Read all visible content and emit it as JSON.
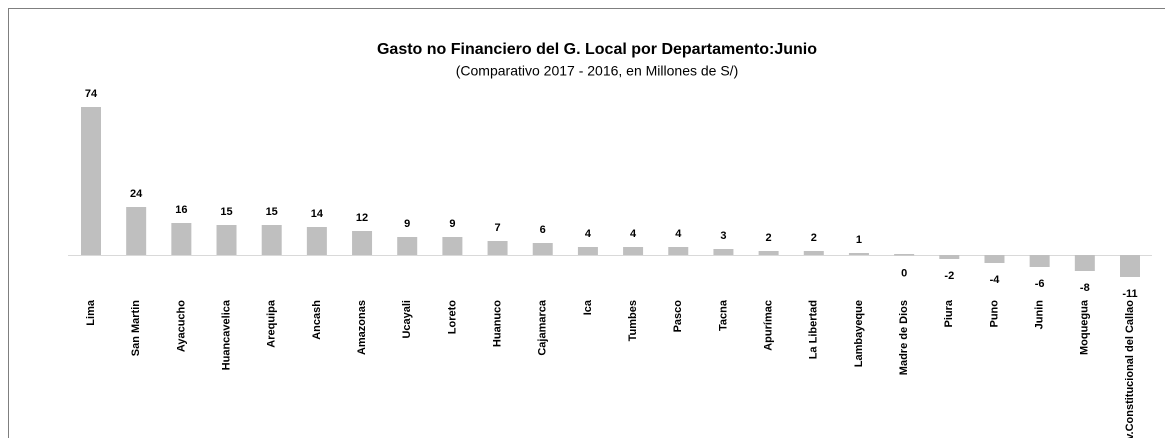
{
  "chart_data": {
    "type": "bar",
    "title": "Gasto no Financiero del G. Local por Departamento:Junio",
    "subtitle": "(Comparativo 2017 - 2016,  en Millones de S/)",
    "categories": [
      "Lima",
      "San Martin",
      "Ayacucho",
      "Huancavelica",
      "Arequipa",
      "Ancash",
      "Amazonas",
      "Ucayali",
      "Loreto",
      "Huanuco",
      "Cajamarca",
      "Ica",
      "Tumbes",
      "Pasco",
      "Tacna",
      "Apurímac",
      "La Libertad",
      "Lambayeque",
      "Madre de Dios",
      "Piura",
      "Puno",
      "Junin",
      "Moquegua",
      "Prov.Constitucional del Callao"
    ],
    "values": [
      74,
      24,
      16,
      15,
      15,
      14,
      12,
      9,
      9,
      7,
      6,
      4,
      4,
      4,
      3,
      2,
      2,
      1,
      0,
      -2,
      -4,
      -6,
      -8,
      -11
    ],
    "color": "#bfbfbf"
  }
}
